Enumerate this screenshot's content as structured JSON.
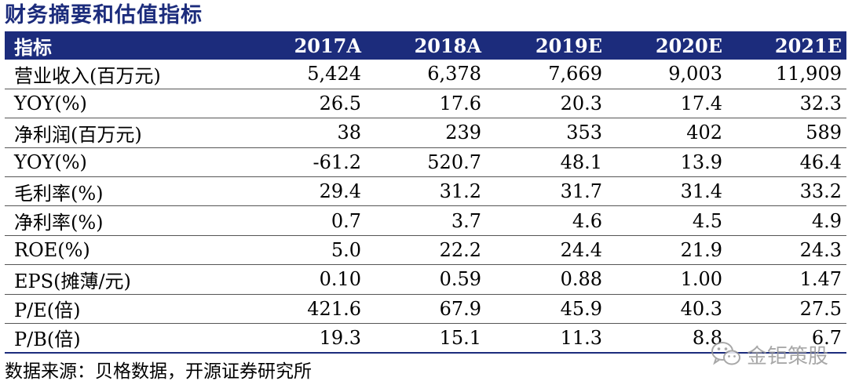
{
  "title": "财务摘要和估值指标",
  "table": {
    "header": [
      "指标",
      "2017A",
      "2018A",
      "2019E",
      "2020E",
      "2021E"
    ],
    "rows": [
      [
        "营业收入(百万元)",
        "5,424",
        "6,378",
        "7,669",
        "9,003",
        "11,909"
      ],
      [
        "YOY(%)",
        "26.5",
        "17.6",
        "20.3",
        "17.4",
        "32.3"
      ],
      [
        "净利润(百万元)",
        "38",
        "239",
        "353",
        "402",
        "589"
      ],
      [
        "YOY(%)",
        "-61.2",
        "520.7",
        "48.1",
        "13.9",
        "46.4"
      ],
      [
        "毛利率(%)",
        "29.4",
        "31.2",
        "31.7",
        "31.4",
        "33.2"
      ],
      [
        "净利率(%)",
        "0.7",
        "3.7",
        "4.6",
        "4.5",
        "4.9"
      ],
      [
        "ROE(%)",
        "5.0",
        "22.2",
        "24.4",
        "21.9",
        "24.3"
      ],
      [
        "EPS(摊薄/元)",
        "0.10",
        "0.59",
        "0.88",
        "1.00",
        "1.47"
      ],
      [
        "P/E(倍)",
        "421.6",
        "67.9",
        "45.9",
        "40.3",
        "27.5"
      ],
      [
        "P/B(倍)",
        "19.3",
        "15.1",
        "11.3",
        "8.8",
        "6.7"
      ]
    ]
  },
  "source": "数据来源：贝格数据，开源证券研究所",
  "watermark": {
    "icon": "wechat-icon",
    "text": "金钜策股"
  },
  "colors": {
    "header_bg": "#1c2c7c",
    "title": "#1c2c7c"
  }
}
